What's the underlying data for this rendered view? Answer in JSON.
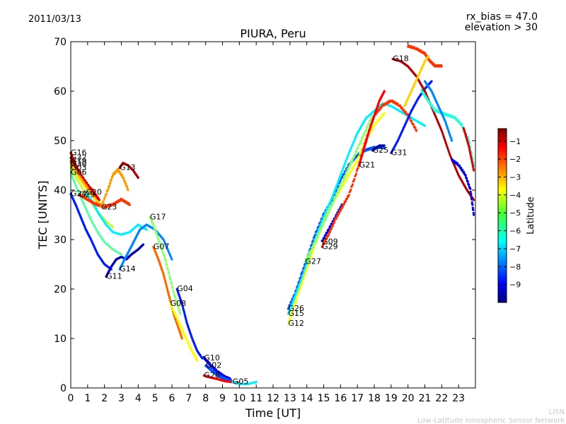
{
  "header": {
    "date": "2011/03/13",
    "title": "PIURA, Peru",
    "rx_bias": "rx_bias = 47.0",
    "elevation": "elevation > 30"
  },
  "footer": {
    "org_short": "LISN",
    "org_full": "Low-Latitude Ionospheric Sensor Network"
  },
  "colorbar": {
    "label": "Latitude",
    "ticks": [
      "−1",
      "−2",
      "−3",
      "−4",
      "−5",
      "−6",
      "−7",
      "−8",
      "−9"
    ],
    "range": [
      -10,
      -0.3
    ],
    "colormap": "jet"
  },
  "chart_data": {
    "type": "scatter",
    "title": "PIURA, Peru",
    "xlabel": "Time [UT]",
    "ylabel": "TEC [UNITS]",
    "xlim": [
      0,
      24
    ],
    "ylim": [
      0,
      70
    ],
    "xticks": [
      "0",
      "1",
      "2",
      "3",
      "4",
      "5",
      "6",
      "7",
      "8",
      "9",
      "10",
      "11",
      "12",
      "13",
      "14",
      "15",
      "16",
      "17",
      "18",
      "19",
      "20",
      "21",
      "22",
      "23"
    ],
    "yticks": [
      "0",
      "10",
      "20",
      "30",
      "40",
      "50",
      "60",
      "70"
    ],
    "grid": false,
    "color_by": "Latitude",
    "series": [
      {
        "name": "G16",
        "lat": -1.5,
        "points": [
          [
            0,
            47.5
          ],
          [
            0.3,
            45
          ],
          [
            0.6,
            43
          ],
          [
            1.0,
            41
          ],
          [
            1.3,
            40
          ],
          [
            1.7,
            38
          ]
        ]
      },
      {
        "name": "G32",
        "lat": -1.0,
        "points": [
          [
            0,
            46.5
          ],
          [
            0.4,
            44
          ],
          [
            0.8,
            42
          ],
          [
            1.2,
            40
          ],
          [
            1.6,
            38
          ]
        ]
      },
      {
        "name": "G19",
        "lat": -2.5,
        "points": [
          [
            0,
            45.8
          ],
          [
            0.4,
            43.5
          ],
          [
            0.8,
            41.5
          ],
          [
            1.2,
            39.5
          ],
          [
            1.6,
            37.5
          ]
        ]
      },
      {
        "name": "G30",
        "lat": -3.5,
        "points": [
          [
            0,
            45.2
          ],
          [
            0.5,
            42.5
          ],
          [
            1.0,
            40
          ],
          [
            1.5,
            38
          ],
          [
            2.0,
            36.5
          ]
        ]
      },
      {
        "name": "G03",
        "lat": -4.5,
        "points": [
          [
            0,
            44.5
          ],
          [
            0.5,
            41.5
          ],
          [
            1.0,
            38.5
          ],
          [
            1.5,
            36
          ],
          [
            2.0,
            34
          ],
          [
            2.5,
            32.5
          ]
        ]
      },
      {
        "name": "G06",
        "lat": -5.5,
        "points": [
          [
            0,
            43.5
          ],
          [
            0.4,
            40
          ],
          [
            0.8,
            37
          ],
          [
            1.2,
            34
          ],
          [
            1.6,
            31.5
          ],
          [
            2.0,
            29.5
          ],
          [
            2.5,
            28
          ],
          [
            3.0,
            27
          ]
        ]
      },
      {
        "name": "G20",
        "lat": -6.5,
        "points": [
          [
            0.9,
            39.5
          ],
          [
            1.3,
            37.5
          ],
          [
            1.7,
            35
          ],
          [
            2.1,
            33
          ],
          [
            2.5,
            31.5
          ],
          [
            3.0,
            31
          ],
          [
            3.5,
            31.5
          ],
          [
            4.0,
            33
          ],
          [
            4.5,
            32
          ]
        ]
      },
      {
        "name": "G29",
        "lat": -2.0,
        "points": [
          [
            0.5,
            39
          ],
          [
            1.0,
            38
          ],
          [
            1.5,
            37
          ],
          [
            2.0,
            36.5
          ],
          [
            2.5,
            37
          ],
          [
            3.0,
            38
          ],
          [
            3.5,
            37
          ]
        ]
      },
      {
        "name": "G24",
        "lat": -8.5,
        "points": [
          [
            0,
            39.2
          ],
          [
            0.3,
            37
          ],
          [
            0.6,
            34.5
          ],
          [
            0.9,
            32
          ],
          [
            1.2,
            30
          ],
          [
            1.6,
            27
          ],
          [
            2.0,
            25
          ],
          [
            2.4,
            24
          ]
        ]
      },
      {
        "name": "G23",
        "lat": -3.0,
        "points": [
          [
            1.8,
            36.5
          ],
          [
            2.2,
            40
          ],
          [
            2.5,
            43
          ],
          [
            2.8,
            44
          ],
          [
            3.1,
            42.5
          ],
          [
            3.4,
            40
          ]
        ]
      },
      {
        "name": "G13",
        "lat": -0.8,
        "points": [
          [
            2.9,
            44.5
          ],
          [
            3.1,
            45.5
          ],
          [
            3.4,
            45
          ],
          [
            3.7,
            44
          ],
          [
            4.0,
            42.5
          ]
        ]
      },
      {
        "name": "G11",
        "lat": -9.5,
        "points": [
          [
            2.1,
            22.5
          ],
          [
            2.4,
            24.5
          ],
          [
            2.7,
            26
          ],
          [
            3.0,
            26.5
          ],
          [
            3.3,
            26
          ],
          [
            3.6,
            27
          ],
          [
            4.0,
            28
          ],
          [
            4.3,
            29
          ]
        ]
      },
      {
        "name": "G14",
        "lat": -7.5,
        "points": [
          [
            2.9,
            24
          ],
          [
            3.2,
            26
          ],
          [
            3.5,
            28
          ],
          [
            3.8,
            30
          ],
          [
            4.1,
            32
          ],
          [
            4.5,
            33
          ],
          [
            5.0,
            32
          ],
          [
            5.5,
            30
          ],
          [
            6.0,
            26
          ]
        ]
      },
      {
        "name": "G17",
        "lat": -5.0,
        "points": [
          [
            4.7,
            34.5
          ],
          [
            5.0,
            32
          ],
          [
            5.3,
            29
          ],
          [
            5.6,
            26
          ],
          [
            5.9,
            22
          ],
          [
            6.2,
            18
          ],
          [
            6.5,
            15
          ]
        ]
      },
      {
        "name": "G07",
        "lat": -2.5,
        "points": [
          [
            4.9,
            28.5
          ],
          [
            5.2,
            26
          ],
          [
            5.5,
            23
          ],
          [
            5.8,
            19
          ],
          [
            6.1,
            15
          ],
          [
            6.4,
            12
          ],
          [
            6.6,
            10
          ]
        ]
      },
      {
        "name": "G04",
        "lat": -8.5,
        "points": [
          [
            6.3,
            20
          ],
          [
            6.6,
            17
          ],
          [
            6.9,
            13
          ],
          [
            7.2,
            10
          ],
          [
            7.5,
            7.5
          ],
          [
            7.8,
            6
          ]
        ]
      },
      {
        "name": "G08",
        "lat": -4.0,
        "points": [
          [
            5.9,
            17
          ],
          [
            6.3,
            14
          ],
          [
            6.7,
            11
          ],
          [
            7.1,
            8
          ],
          [
            7.5,
            5.5
          ]
        ]
      },
      {
        "name": "G10",
        "lat": -9.0,
        "points": [
          [
            7.9,
            6
          ],
          [
            8.3,
            4.5
          ],
          [
            8.7,
            3.2
          ],
          [
            9.1,
            2.2
          ],
          [
            9.5,
            1.6
          ]
        ]
      },
      {
        "name": "G02",
        "lat": -8.0,
        "points": [
          [
            8.0,
            4.5
          ],
          [
            8.4,
            3.3
          ],
          [
            8.8,
            2.3
          ],
          [
            9.2,
            1.6
          ],
          [
            9.6,
            1.2
          ]
        ]
      },
      {
        "name": "G28",
        "lat": -1.5,
        "points": [
          [
            7.9,
            2.5
          ],
          [
            8.3,
            2.1
          ],
          [
            8.7,
            1.8
          ],
          [
            9.1,
            1.4
          ],
          [
            9.5,
            1.2
          ],
          [
            10.0,
            1.0
          ]
        ]
      },
      {
        "name": "G05",
        "lat": -6.5,
        "points": [
          [
            9.6,
            1.2
          ],
          [
            10.0,
            0.8
          ],
          [
            10.5,
            0.8
          ],
          [
            11.0,
            1.2
          ]
        ]
      },
      {
        "name": "G26",
        "lat": -8.0,
        "points": [
          [
            12.9,
            16
          ],
          [
            13.3,
            19
          ],
          [
            13.7,
            23
          ],
          [
            14.1,
            27
          ],
          [
            14.5,
            31
          ],
          [
            15.0,
            35
          ],
          [
            15.5,
            38
          ],
          [
            16.0,
            42
          ],
          [
            16.5,
            45
          ],
          [
            17.0,
            47
          ],
          [
            17.5,
            48
          ],
          [
            18.0,
            48.5
          ],
          [
            18.6,
            48.5
          ]
        ]
      },
      {
        "name": "G15",
        "lat": -6.5,
        "points": [
          [
            12.9,
            15
          ],
          [
            13.3,
            18.5
          ],
          [
            13.7,
            22
          ],
          [
            14.1,
            26
          ],
          [
            14.5,
            30
          ],
          [
            15.0,
            34.5
          ],
          [
            15.5,
            38.5
          ],
          [
            16.0,
            43
          ],
          [
            16.5,
            47.5
          ],
          [
            17.0,
            51.5
          ],
          [
            17.5,
            54.5
          ],
          [
            18.0,
            56
          ],
          [
            18.5,
            57.5
          ],
          [
            19.0,
            57
          ],
          [
            19.5,
            56
          ],
          [
            20.0,
            55
          ],
          [
            20.5,
            54
          ],
          [
            21.0,
            53
          ]
        ]
      },
      {
        "name": "G12",
        "lat": -4.0,
        "points": [
          [
            12.9,
            13
          ],
          [
            13.3,
            17
          ],
          [
            13.7,
            21
          ],
          [
            14.1,
            25
          ],
          [
            14.5,
            29
          ],
          [
            15.0,
            33.5
          ],
          [
            15.5,
            37
          ],
          [
            16.0,
            40
          ],
          [
            16.5,
            43
          ],
          [
            17.0,
            46
          ],
          [
            17.5,
            50
          ],
          [
            18.0,
            53
          ],
          [
            18.6,
            55.5
          ]
        ]
      },
      {
        "name": "G27",
        "lat": -5.0,
        "points": [
          [
            13.9,
            25.5
          ],
          [
            14.3,
            28
          ],
          [
            14.7,
            31
          ],
          [
            15.1,
            34
          ],
          [
            15.5,
            37
          ],
          [
            15.9,
            40
          ],
          [
            16.3,
            43
          ],
          [
            16.7,
            46
          ],
          [
            17.1,
            49
          ],
          [
            17.5,
            52
          ],
          [
            17.9,
            55
          ]
        ]
      },
      {
        "name": "G09",
        "lat": -9.0,
        "points": [
          [
            14.9,
            29.5
          ],
          [
            15.3,
            32
          ],
          [
            15.7,
            34.5
          ],
          [
            16.1,
            37
          ]
        ]
      },
      {
        "name": "G29",
        "lat": -2.0,
        "points": [
          [
            14.9,
            28.5
          ],
          [
            15.3,
            31
          ],
          [
            15.7,
            34
          ],
          [
            16.1,
            36.5
          ],
          [
            16.5,
            39
          ],
          [
            17.0,
            44
          ],
          [
            17.5,
            50
          ],
          [
            18.0,
            55
          ],
          [
            18.5,
            57
          ],
          [
            19.0,
            58
          ],
          [
            19.5,
            57
          ],
          [
            20.0,
            55
          ],
          [
            20.5,
            52
          ]
        ]
      },
      {
        "name": "G21",
        "lat": -1.5,
        "points": [
          [
            17.1,
            45
          ],
          [
            17.4,
            48.5
          ],
          [
            17.7,
            52
          ],
          [
            18.0,
            55
          ],
          [
            18.3,
            58
          ],
          [
            18.6,
            60
          ]
        ]
      },
      {
        "name": "G25",
        "lat": -9.5,
        "points": [
          [
            17.9,
            48
          ],
          [
            18.3,
            49
          ],
          [
            18.6,
            49
          ]
        ]
      },
      {
        "name": "G31",
        "lat": -8.5,
        "points": [
          [
            19.0,
            47.5
          ],
          [
            19.4,
            50
          ],
          [
            19.8,
            53
          ],
          [
            20.2,
            56
          ],
          [
            20.6,
            58.5
          ],
          [
            21.0,
            60.5
          ],
          [
            21.4,
            62
          ]
        ]
      },
      {
        "name": "G18",
        "lat": -0.8,
        "points": [
          [
            19.1,
            66.5
          ],
          [
            19.6,
            66
          ],
          [
            20.0,
            65
          ],
          [
            20.5,
            63
          ],
          [
            21.0,
            60
          ],
          [
            21.5,
            56
          ],
          [
            22.0,
            52
          ],
          [
            22.5,
            47
          ],
          [
            23.0,
            43
          ],
          [
            23.5,
            40
          ],
          [
            23.9,
            38
          ]
        ]
      },
      {
        "name": "",
        "lat": -2.0,
        "points": [
          [
            20.0,
            69
          ],
          [
            20.5,
            68.5
          ],
          [
            21.0,
            67.5
          ],
          [
            21.3,
            66
          ],
          [
            21.6,
            65
          ],
          [
            22.0,
            65
          ]
        ]
      },
      {
        "name": "",
        "lat": -3.5,
        "points": [
          [
            19.8,
            57
          ],
          [
            20.2,
            60
          ],
          [
            20.6,
            63
          ],
          [
            21.0,
            66
          ],
          [
            21.2,
            67
          ]
        ]
      },
      {
        "name": "",
        "lat": -6.0,
        "points": [
          [
            20.8,
            60
          ],
          [
            21.2,
            58
          ],
          [
            21.6,
            56
          ],
          [
            22.0,
            55.5
          ],
          [
            22.4,
            55
          ],
          [
            22.8,
            54.5
          ],
          [
            23.2,
            53
          ],
          [
            23.6,
            50
          ],
          [
            23.9,
            45
          ]
        ]
      },
      {
        "name": "",
        "lat": -7.5,
        "points": [
          [
            21.0,
            62
          ],
          [
            21.4,
            60
          ],
          [
            21.8,
            57
          ],
          [
            22.2,
            54
          ],
          [
            22.6,
            50
          ]
        ]
      },
      {
        "name": "",
        "lat": -9.0,
        "points": [
          [
            22.6,
            46
          ],
          [
            23.0,
            45
          ],
          [
            23.4,
            43
          ],
          [
            23.7,
            40
          ],
          [
            23.9,
            35
          ]
        ]
      },
      {
        "name": "",
        "lat": -1.2,
        "points": [
          [
            23.3,
            52.5
          ],
          [
            23.6,
            49
          ],
          [
            23.9,
            44
          ]
        ]
      }
    ]
  }
}
